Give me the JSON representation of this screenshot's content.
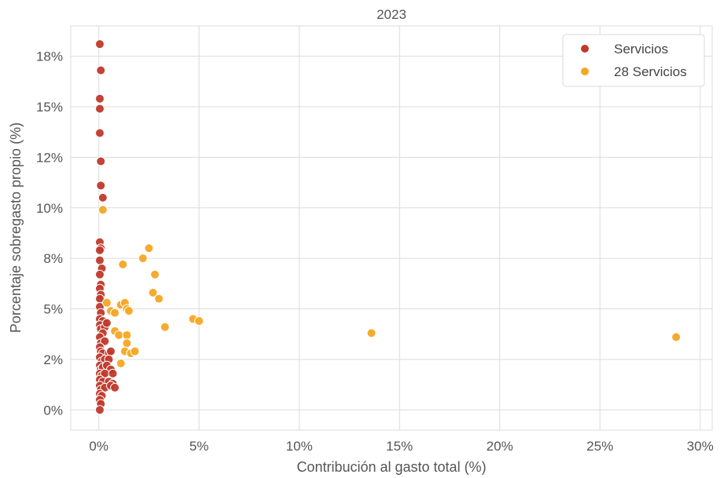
{
  "chart_data": {
    "type": "scatter",
    "title": "2023",
    "xlabel": "Contribución al gasto total (%)",
    "ylabel": "Porcentaje sobregasto propio (%)",
    "xlim": [
      -1.4,
      30.6
    ],
    "ylim": [
      -1.0,
      19.0
    ],
    "x_ticks": [
      0,
      5,
      10,
      15,
      20,
      25,
      30
    ],
    "x_tick_labels": [
      "0%",
      "5%",
      "10%",
      "15%",
      "20%",
      "25%",
      "30%"
    ],
    "y_ticks": [
      0,
      2.5,
      5,
      7.5,
      10,
      12.5,
      15,
      17.5
    ],
    "y_tick_labels": [
      "0%",
      "2%",
      "5%",
      "8%",
      "10%",
      "12%",
      "15%",
      "18%"
    ],
    "grid": true,
    "legend_position": "top-right",
    "series": [
      {
        "name": "Servicios",
        "color": "#c0392b",
        "points": [
          [
            0.05,
            18.1
          ],
          [
            0.1,
            16.8
          ],
          [
            0.05,
            15.4
          ],
          [
            0.05,
            14.9
          ],
          [
            0.05,
            13.7
          ],
          [
            0.1,
            12.3
          ],
          [
            0.1,
            11.1
          ],
          [
            0.2,
            10.5
          ],
          [
            0.05,
            8.3
          ],
          [
            0.1,
            8.0
          ],
          [
            0.05,
            7.9
          ],
          [
            0.05,
            7.4
          ],
          [
            0.15,
            7.0
          ],
          [
            0.05,
            6.7
          ],
          [
            0.1,
            6.2
          ],
          [
            0.05,
            6.0
          ],
          [
            0.1,
            5.7
          ],
          [
            0.05,
            5.5
          ],
          [
            0.05,
            5.1
          ],
          [
            0.1,
            4.8
          ],
          [
            0.05,
            4.5
          ],
          [
            0.2,
            4.4
          ],
          [
            0.05,
            4.2
          ],
          [
            0.1,
            4.0
          ],
          [
            0.3,
            4.1
          ],
          [
            0.4,
            4.3
          ],
          [
            0.2,
            3.8
          ],
          [
            0.05,
            3.6
          ],
          [
            0.1,
            3.3
          ],
          [
            0.3,
            3.4
          ],
          [
            0.05,
            3.1
          ],
          [
            0.1,
            2.9
          ],
          [
            0.2,
            2.8
          ],
          [
            0.5,
            2.8
          ],
          [
            0.6,
            2.9
          ],
          [
            0.05,
            2.6
          ],
          [
            0.15,
            2.4
          ],
          [
            0.3,
            2.5
          ],
          [
            0.5,
            2.5
          ],
          [
            0.05,
            2.2
          ],
          [
            0.1,
            2.0
          ],
          [
            0.2,
            2.1
          ],
          [
            0.4,
            2.2
          ],
          [
            0.6,
            2.0
          ],
          [
            0.05,
            1.8
          ],
          [
            0.15,
            1.7
          ],
          [
            0.3,
            1.8
          ],
          [
            0.7,
            1.8
          ],
          [
            0.05,
            1.5
          ],
          [
            0.2,
            1.4
          ],
          [
            0.5,
            1.4
          ],
          [
            0.05,
            1.2
          ],
          [
            0.1,
            1.0
          ],
          [
            0.3,
            1.1
          ],
          [
            0.7,
            1.3
          ],
          [
            0.05,
            0.8
          ],
          [
            0.15,
            0.7
          ],
          [
            0.6,
            1.2
          ],
          [
            0.8,
            1.1
          ],
          [
            0.05,
            0.5
          ],
          [
            0.1,
            0.3
          ],
          [
            0.05,
            0.0
          ]
        ]
      },
      {
        "name": "28 Servicios",
        "color": "#f5a623",
        "points": [
          [
            0.2,
            9.9
          ],
          [
            2.5,
            8.0
          ],
          [
            2.2,
            7.5
          ],
          [
            1.2,
            7.2
          ],
          [
            2.8,
            6.7
          ],
          [
            2.7,
            5.8
          ],
          [
            3.0,
            5.5
          ],
          [
            0.4,
            5.3
          ],
          [
            1.1,
            5.2
          ],
          [
            1.3,
            5.3
          ],
          [
            1.4,
            5.0
          ],
          [
            1.5,
            4.9
          ],
          [
            0.6,
            4.9
          ],
          [
            0.8,
            4.8
          ],
          [
            4.7,
            4.5
          ],
          [
            5.0,
            4.4
          ],
          [
            3.3,
            4.1
          ],
          [
            0.8,
            3.9
          ],
          [
            1.0,
            3.7
          ],
          [
            1.4,
            3.7
          ],
          [
            1.4,
            3.3
          ],
          [
            1.3,
            2.9
          ],
          [
            1.6,
            2.8
          ],
          [
            1.8,
            2.9
          ],
          [
            1.1,
            2.3
          ],
          [
            13.6,
            3.8
          ],
          [
            28.8,
            3.6
          ]
        ]
      }
    ]
  }
}
